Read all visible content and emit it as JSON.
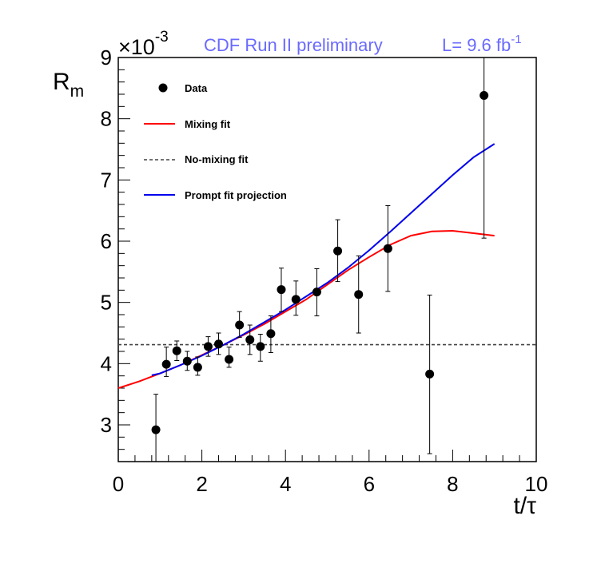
{
  "chart_data": {
    "type": "scatter",
    "header_label": "CDF Run II preliminary",
    "header_lumi_prefix": "L= 9.6 fb",
    "header_lumi_exp": "-1",
    "header_color": "#6a6aff",
    "xlabel": "t/τ",
    "ylabel_main": "R",
    "ylabel_sub": "m",
    "y_multiplier_base": "×10",
    "y_multiplier_exp": "-3",
    "xlim": [
      0,
      10
    ],
    "ylim": [
      2.4,
      9.0
    ],
    "x_ticks": [
      0,
      2,
      4,
      6,
      8,
      10
    ],
    "y_ticks": [
      3,
      4,
      5,
      6,
      7,
      8,
      9
    ],
    "legend": [
      {
        "label": "Data",
        "style": "marker"
      },
      {
        "label": "Mixing fit",
        "style": "line",
        "color": "#ff0000"
      },
      {
        "label": "No-mixing fit",
        "style": "dashed",
        "color": "#444444"
      },
      {
        "label": "Prompt fit projection",
        "style": "line",
        "color": "#0000ee"
      }
    ],
    "data_points": [
      {
        "x": 0.9,
        "y": 2.92,
        "err_lo": 0.93,
        "err_hi": 0.58
      },
      {
        "x": 1.15,
        "y": 3.99,
        "err_lo": 0.2,
        "err_hi": 0.28
      },
      {
        "x": 1.4,
        "y": 4.21,
        "err_lo": 0.16,
        "err_hi": 0.16
      },
      {
        "x": 1.65,
        "y": 4.04,
        "err_lo": 0.15,
        "err_hi": 0.16
      },
      {
        "x": 1.9,
        "y": 3.94,
        "err_lo": 0.13,
        "err_hi": 0.17
      },
      {
        "x": 2.15,
        "y": 4.28,
        "err_lo": 0.16,
        "err_hi": 0.16
      },
      {
        "x": 2.4,
        "y": 4.32,
        "err_lo": 0.17,
        "err_hi": 0.18
      },
      {
        "x": 2.65,
        "y": 4.07,
        "err_lo": 0.13,
        "err_hi": 0.2
      },
      {
        "x": 2.9,
        "y": 4.63,
        "err_lo": 0.2,
        "err_hi": 0.22
      },
      {
        "x": 3.15,
        "y": 4.39,
        "err_lo": 0.24,
        "err_hi": 0.24
      },
      {
        "x": 3.4,
        "y": 4.28,
        "err_lo": 0.24,
        "err_hi": 0.2
      },
      {
        "x": 3.65,
        "y": 4.49,
        "err_lo": 0.31,
        "err_hi": 0.29
      },
      {
        "x": 3.9,
        "y": 5.21,
        "err_lo": 0.36,
        "err_hi": 0.35
      },
      {
        "x": 4.25,
        "y": 5.05,
        "err_lo": 0.26,
        "err_hi": 0.3
      },
      {
        "x": 4.75,
        "y": 5.17,
        "err_lo": 0.39,
        "err_hi": 0.38
      },
      {
        "x": 5.25,
        "y": 5.84,
        "err_lo": 0.5,
        "err_hi": 0.51
      },
      {
        "x": 5.75,
        "y": 5.13,
        "err_lo": 0.63,
        "err_hi": 0.63
      },
      {
        "x": 6.45,
        "y": 5.88,
        "err_lo": 0.7,
        "err_hi": 0.7
      },
      {
        "x": 7.45,
        "y": 3.83,
        "err_lo": 1.3,
        "err_hi": 1.29
      },
      {
        "x": 8.75,
        "y": 8.38,
        "err_lo": 2.33,
        "err_hi": 0.62
      }
    ],
    "series": [
      {
        "name": "Mixing fit",
        "color": "#ff0000",
        "x": [
          0.0,
          0.5,
          1.0,
          1.5,
          2.0,
          2.5,
          3.0,
          3.5,
          4.0,
          4.5,
          5.0,
          5.5,
          6.0,
          6.5,
          7.0,
          7.5,
          8.0,
          8.5,
          9.0
        ],
        "y": [
          3.6,
          3.71,
          3.84,
          3.98,
          4.14,
          4.3,
          4.47,
          4.65,
          4.85,
          5.05,
          5.29,
          5.53,
          5.74,
          5.94,
          6.09,
          6.16,
          6.17,
          6.13,
          6.09
        ]
      },
      {
        "name": "Prompt fit projection",
        "color": "#0000ee",
        "x": [
          0.8,
          1.0,
          1.5,
          2.0,
          2.5,
          3.0,
          3.5,
          4.0,
          4.5,
          5.0,
          5.5,
          6.0,
          6.5,
          7.0,
          7.5,
          8.0,
          8.5,
          9.0
        ],
        "y": [
          3.81,
          3.84,
          3.98,
          4.13,
          4.3,
          4.48,
          4.68,
          4.88,
          5.1,
          5.32,
          5.57,
          5.85,
          6.15,
          6.46,
          6.77,
          7.08,
          7.37,
          7.59
        ]
      },
      {
        "name": "No-mixing fit",
        "color": "#444444",
        "constant": 4.31
      }
    ]
  }
}
